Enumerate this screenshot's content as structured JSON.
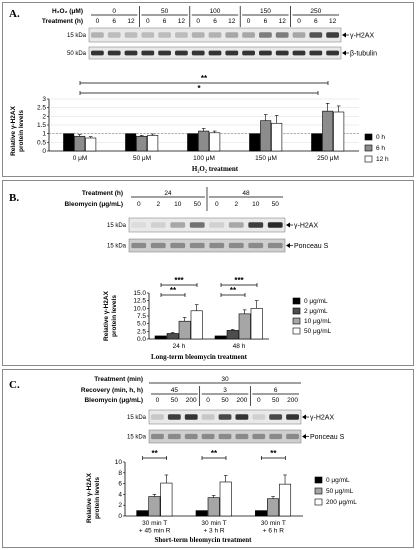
{
  "panels": [
    {
      "label": "A.",
      "header": {
        "row1_title": "H₂O₂ (μM)",
        "row1_groups": [
          "0",
          "50",
          "100",
          "150",
          "250"
        ],
        "row2_title": "Treatment (h)",
        "row2_lanes": [
          "0",
          "6",
          "12",
          "0",
          "6",
          "12",
          "0",
          "6",
          "12",
          "0",
          "6",
          "12",
          "0",
          "6",
          "12"
        ]
      },
      "blots": [
        {
          "kda": "15 kDa",
          "label": "γ-H2AX"
        },
        {
          "kda": "50 kDa",
          "label": "β-tubulin"
        }
      ],
      "y_axis_label_lines": [
        "Relative γ-H2AX",
        "protein levels"
      ],
      "x_axis_title": "H₂O₂ treatment",
      "significance": [
        "**",
        "*"
      ]
    },
    {
      "label": "B.",
      "header": {
        "row1_title": "Treatment (h)",
        "row1_groups": [
          "24",
          "48"
        ],
        "row2_title": "Bleomycin (μg/mL)",
        "row2_lanes": [
          "0",
          "2",
          "10",
          "50",
          "0",
          "2",
          "10",
          "50"
        ]
      },
      "blots": [
        {
          "kda": "15 kDa",
          "label": "γ-H2AX"
        },
        {
          "kda": "15 kDa",
          "label": "Ponceau S"
        }
      ],
      "y_axis_label_lines": [
        "Relative γ-H2AX",
        "protein levels"
      ],
      "x_axis_title": "Long-term bleomycin treatment",
      "significance": [
        "***",
        "**",
        "***",
        "**"
      ]
    },
    {
      "label": "C.",
      "header": {
        "row0_title": "Treatment (min)",
        "row0_value": "30",
        "row1_title": "Recovery (min, h, h)",
        "row1_groups": [
          "45",
          "3",
          "6"
        ],
        "row2_title": "Bleomycin (μg/mL)",
        "row2_lanes": [
          "0",
          "50",
          "200",
          "0",
          "50",
          "200",
          "0",
          "50",
          "200"
        ]
      },
      "blots": [
        {
          "kda": "15 kDa",
          "label": "γ-H2AX"
        },
        {
          "kda": "15 kDa",
          "label": "Ponceau S"
        }
      ],
      "y_axis_label_lines": [
        "Relative γ-H2AX",
        "protein levels"
      ],
      "x_axis_title": "Short-term bleomycin treatment",
      "significance": [
        "**",
        "**",
        "**"
      ]
    }
  ],
  "chart_data": [
    {
      "type": "bar",
      "categories": [
        "0 μM",
        "50 μM",
        "100 μM",
        "150 μM",
        "250 μM"
      ],
      "series": [
        {
          "name": "0 h",
          "color": "#000000",
          "values": [
            1.0,
            1.0,
            1.0,
            1.0,
            1.0
          ],
          "errors": [
            0,
            0,
            0,
            0,
            0
          ]
        },
        {
          "name": "6 h",
          "color": "#8c8c8c",
          "values": [
            0.85,
            0.85,
            1.15,
            1.75,
            2.3
          ],
          "errors": [
            0.1,
            0.05,
            0.15,
            0.35,
            0.45
          ]
        },
        {
          "name": "12 h",
          "color": "#ffffff",
          "values": [
            0.75,
            0.9,
            1.05,
            1.6,
            2.25
          ],
          "errors": [
            0.08,
            0.08,
            0.1,
            0.45,
            0.35
          ]
        }
      ],
      "yticks": [
        "0",
        "0.5",
        "1",
        "1.5",
        "2",
        "2.5",
        "3"
      ],
      "ylim": [
        0,
        3
      ],
      "legend": "right"
    },
    {
      "type": "bar",
      "categories": [
        "24 h",
        "48 h"
      ],
      "series": [
        {
          "name": "0 μg/mL",
          "color": "#000000",
          "values": [
            1.0,
            1.0
          ],
          "errors": [
            0,
            0
          ]
        },
        {
          "name": "2 μg/mL",
          "color": "#4d4d4d",
          "values": [
            1.8,
            2.8
          ],
          "errors": [
            0.3,
            0.3
          ]
        },
        {
          "name": "10 μg/mL",
          "color": "#a6a6a6",
          "values": [
            5.8,
            8.2
          ],
          "errors": [
            1.2,
            1.3
          ]
        },
        {
          "name": "50 μg/mL",
          "color": "#ffffff",
          "values": [
            9.2,
            10.0
          ],
          "errors": [
            2.0,
            2.5
          ]
        }
      ],
      "yticks": [
        "0.0",
        "2.5",
        "5.0",
        "7.5",
        "10.0",
        "12.5",
        "15.0"
      ],
      "ylim": [
        0,
        15
      ],
      "legend": "right"
    },
    {
      "type": "bar",
      "categories": [
        [
          "30 min T",
          "+ 45 min R"
        ],
        [
          "30 min T",
          "+ 3 h R"
        ],
        [
          "30 min T",
          "+ 6 h R"
        ]
      ],
      "series": [
        {
          "name": "0 μg/mL",
          "color": "#000000",
          "values": [
            1.0,
            1.0,
            1.0
          ],
          "errors": [
            0,
            0,
            0
          ]
        },
        {
          "name": "50 μg/mL",
          "color": "#a6a6a6",
          "values": [
            3.6,
            3.4,
            3.2
          ],
          "errors": [
            0.4,
            0.4,
            0.4
          ]
        },
        {
          "name": "200 μg/mL",
          "color": "#ffffff",
          "values": [
            6.1,
            6.3,
            5.9
          ],
          "errors": [
            1.5,
            1.2,
            1.7
          ]
        }
      ],
      "yticks": [
        "0",
        "2",
        "4",
        "6",
        "8",
        "10"
      ],
      "ylim": [
        0,
        10
      ],
      "legend": "right"
    }
  ]
}
